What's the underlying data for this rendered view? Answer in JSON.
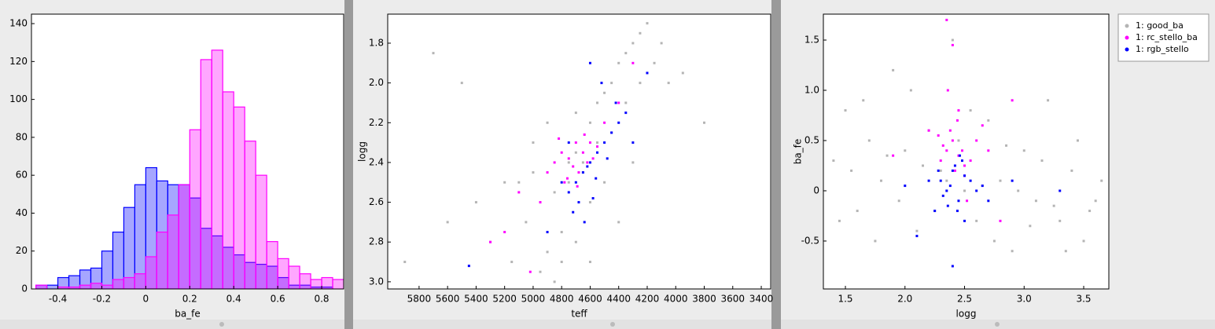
{
  "chart_data": [
    {
      "type": "histogram",
      "xlabel": "ba_fe",
      "bins": [
        -0.5,
        -0.45,
        -0.4,
        -0.35,
        -0.3,
        -0.25,
        -0.2,
        -0.15,
        -0.1,
        -0.05,
        0,
        0.05,
        0.1,
        0.15,
        0.2,
        0.25,
        0.3,
        0.35,
        0.4,
        0.45,
        0.5,
        0.55,
        0.6,
        0.65,
        0.7,
        0.75,
        0.8,
        0.85,
        0.9
      ],
      "series": [
        {
          "color": "#0000ff",
          "values": [
            2,
            2,
            6,
            7,
            10,
            11,
            20,
            30,
            43,
            55,
            64,
            57,
            55,
            55,
            48,
            32,
            28,
            22,
            18,
            14,
            13,
            12,
            6,
            2,
            2,
            1,
            1,
            0
          ]
        },
        {
          "color": "#ff00ff",
          "values": [
            2,
            0,
            1,
            1,
            2,
            3,
            2,
            5,
            6,
            8,
            17,
            30,
            39,
            55,
            84,
            121,
            126,
            104,
            96,
            78,
            60,
            25,
            16,
            12,
            8,
            5,
            6,
            5
          ]
        }
      ],
      "xlim": [
        -0.52,
        0.9
      ],
      "xticks": [
        -0.4,
        -0.2,
        0,
        0.2,
        0.4,
        0.6,
        0.8
      ],
      "ylim": [
        0,
        145
      ],
      "yticks": [
        0,
        20,
        40,
        60,
        80,
        100,
        120,
        140
      ]
    },
    {
      "type": "scatter",
      "xlabel": "teff",
      "ylabel": "logg",
      "series": [
        {
          "name": "1: good_ba",
          "color": "#b4b4b4",
          "x": [
            5900,
            5600,
            5400,
            5200,
            5100,
            5000,
            4950,
            4900,
            4850,
            4800,
            4750,
            4700,
            4650,
            4600,
            4550,
            4500,
            4450,
            4400,
            4350,
            4300,
            4250,
            4200,
            4150,
            4100,
            5300,
            5150,
            5050,
            4950,
            4850,
            4750,
            4650,
            4550,
            4450,
            4350,
            4250,
            4800,
            4700,
            4600,
            5000,
            4900,
            4700,
            4500,
            4300,
            4050,
            3950,
            3800,
            5500,
            5700,
            4600,
            4400
          ],
          "values": [
            2.9,
            2.7,
            2.6,
            2.5,
            2.5,
            2.45,
            2.95,
            2.85,
            3.0,
            2.9,
            2.4,
            2.35,
            2.4,
            2.2,
            2.1,
            2.05,
            2.0,
            1.9,
            1.85,
            1.8,
            1.75,
            1.7,
            1.9,
            1.8,
            2.8,
            2.9,
            2.7,
            2.6,
            2.55,
            2.5,
            2.45,
            2.3,
            2.25,
            2.1,
            2.0,
            2.75,
            2.8,
            2.6,
            2.3,
            2.2,
            2.15,
            2.5,
            2.4,
            2.0,
            1.95,
            2.2,
            2.0,
            1.85,
            2.9,
            2.7
          ]
        },
        {
          "name": "1: rc_stello_ba",
          "color": "#ff00ff",
          "x": [
            4900,
            4850,
            4800,
            4780,
            4750,
            4720,
            4700,
            4680,
            4650,
            4620,
            4600,
            4580,
            4550,
            4820,
            4760,
            4690,
            4640,
            5300,
            5200,
            5100,
            4950,
            4500,
            4400,
            4300,
            5020
          ],
          "values": [
            2.45,
            2.4,
            2.35,
            2.5,
            2.38,
            2.42,
            2.3,
            2.45,
            2.35,
            2.4,
            2.3,
            2.38,
            2.32,
            2.28,
            2.48,
            2.52,
            2.26,
            2.8,
            2.75,
            2.55,
            2.6,
            2.2,
            2.1,
            1.9,
            2.95
          ]
        },
        {
          "name": "1: rgb_stello",
          "color": "#0000ff",
          "x": [
            4700,
            4650,
            4600,
            4550,
            4500,
            4450,
            4400,
            4350,
            4300,
            4750,
            4680,
            4620,
            4560,
            4480,
            4420,
            4800,
            4720,
            4640,
            4580,
            4520,
            5450,
            4900,
            4200,
            4750,
            4600
          ],
          "values": [
            2.5,
            2.45,
            2.4,
            2.35,
            2.3,
            2.25,
            2.2,
            2.15,
            2.3,
            2.55,
            2.6,
            2.42,
            2.48,
            2.38,
            2.1,
            2.5,
            2.65,
            2.7,
            2.58,
            2.0,
            2.92,
            2.75,
            1.95,
            2.3,
            1.9
          ]
        }
      ],
      "xlim": [
        6020,
        3334
      ],
      "xticks": [
        5800,
        5600,
        5400,
        5200,
        5000,
        4800,
        4600,
        4400,
        4200,
        4000,
        3800,
        3600,
        3400
      ],
      "ylim": [
        3.036,
        1.654
      ],
      "yticks": [
        1.8,
        {
          "value": 2,
          "label": "2.0"
        },
        2.2,
        2.4,
        2.6,
        2.8,
        {
          "value": 3,
          "label": "3.0"
        }
      ]
    },
    {
      "type": "scatter",
      "xlabel": "logg",
      "ylabel": "ba_fe",
      "legend": "right",
      "series": [
        {
          "name": "1: good_ba",
          "color": "#b4b4b4",
          "x": [
            1.4,
            1.5,
            1.6,
            1.7,
            1.8,
            1.9,
            2.0,
            2.1,
            2.2,
            2.3,
            2.4,
            2.5,
            2.6,
            2.7,
            2.8,
            2.9,
            3.0,
            3.1,
            3.2,
            3.3,
            3.4,
            3.5,
            3.6,
            1.45,
            1.55,
            1.65,
            1.75,
            1.85,
            1.95,
            2.05,
            2.15,
            2.25,
            2.35,
            2.45,
            2.55,
            2.65,
            2.75,
            2.85,
            2.95,
            3.05,
            3.15,
            3.25,
            3.35,
            3.45,
            3.55,
            3.65
          ],
          "values": [
            0.3,
            0.8,
            -0.2,
            0.5,
            0.1,
            1.2,
            0.4,
            -0.4,
            0.6,
            0.2,
            1.5,
            0.0,
            -0.3,
            0.7,
            0.1,
            -0.6,
            0.4,
            -0.1,
            0.9,
            -0.3,
            0.2,
            -0.5,
            -0.1,
            -0.3,
            0.2,
            0.9,
            -0.5,
            0.35,
            -0.1,
            1.0,
            0.25,
            -0.2,
            0.1,
            0.5,
            0.8,
            0.05,
            -0.5,
            0.45,
            0.0,
            -0.35,
            0.3,
            -0.15,
            -0.6,
            0.5,
            -0.2,
            0.1
          ]
        },
        {
          "name": "1: rc_stello_ba",
          "color": "#ff00ff",
          "x": [
            2.3,
            2.35,
            2.4,
            2.45,
            2.5,
            2.38,
            2.42,
            2.32,
            2.48,
            2.55,
            2.28,
            2.44,
            2.36,
            2.6,
            2.2,
            2.7,
            2.9,
            1.9,
            2.4,
            2.45,
            2.5,
            2.65,
            2.8,
            2.35,
            2.52
          ],
          "values": [
            0.3,
            0.4,
            0.5,
            0.35,
            0.25,
            0.6,
            0.2,
            0.45,
            0.4,
            0.3,
            0.55,
            0.7,
            1.0,
            0.5,
            0.6,
            0.4,
            0.9,
            0.35,
            1.45,
            0.8,
            0.15,
            0.65,
            -0.3,
            1.7,
            -0.1
          ]
        },
        {
          "name": "1: rgb_stello",
          "color": "#0000ff",
          "x": [
            2.3,
            2.35,
            2.4,
            2.45,
            2.5,
            2.38,
            2.42,
            2.32,
            2.48,
            2.55,
            2.28,
            2.44,
            2.36,
            2.6,
            2.2,
            2.7,
            3.3,
            2.0,
            2.1,
            2.25,
            2.5,
            2.65,
            2.9,
            2.4,
            2.46
          ],
          "values": [
            0.1,
            0.0,
            0.2,
            -0.1,
            0.15,
            0.05,
            0.25,
            -0.05,
            0.3,
            0.1,
            0.2,
            -0.2,
            -0.15,
            0.0,
            0.1,
            -0.1,
            0.0,
            0.05,
            -0.45,
            -0.2,
            -0.3,
            0.05,
            0.1,
            -0.75,
            0.35
          ]
        }
      ],
      "xlim": [
        1.315,
        3.711
      ],
      "xticks": [
        1.5,
        {
          "value": 2,
          "label": "2.0"
        },
        2.5,
        {
          "value": 3,
          "label": "3.0"
        },
        3.5
      ],
      "ylim": [
        -0.977,
        1.758
      ],
      "yticks": [
        -0.5,
        0,
        0.5,
        {
          "value": 1,
          "label": "1.0"
        },
        1.5
      ]
    }
  ]
}
